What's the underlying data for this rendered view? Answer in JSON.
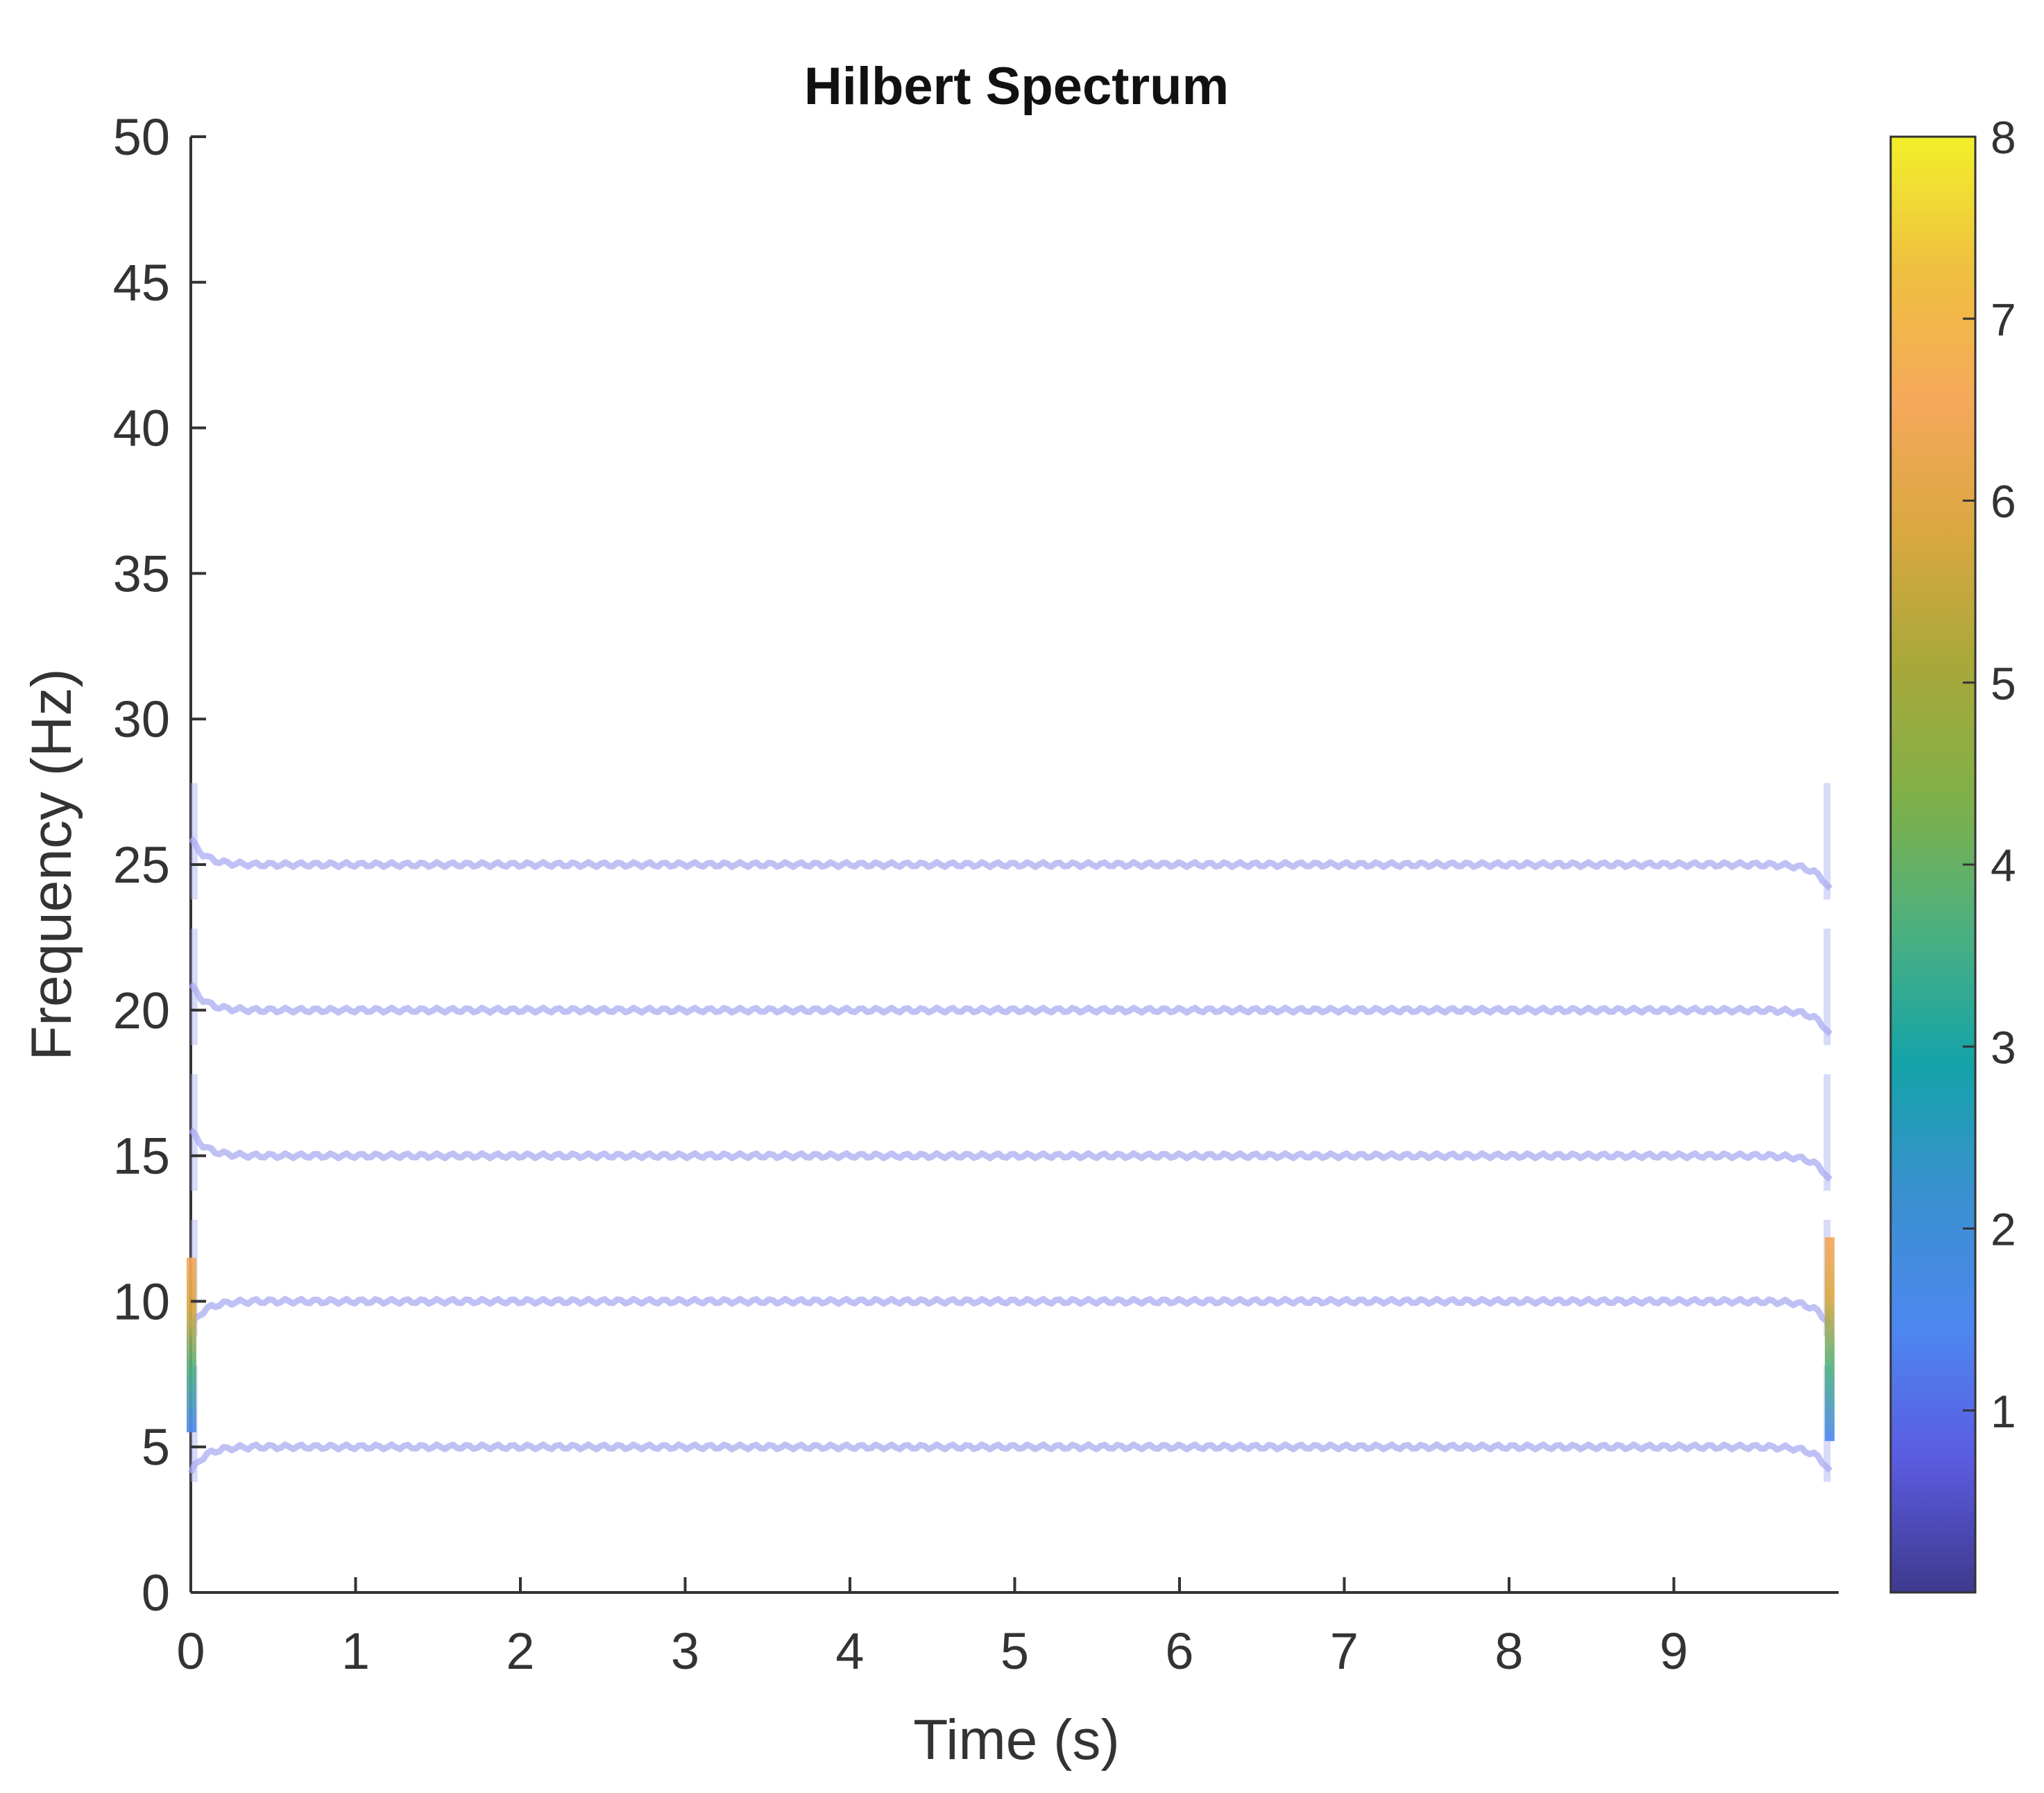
{
  "chart_data": {
    "type": "heatmap",
    "title": "Hilbert Spectrum",
    "xlabel": "Time (s)",
    "ylabel": "Frequency (Hz)",
    "xlim": [
      0,
      10
    ],
    "ylim": [
      0,
      50
    ],
    "x_ticks": [
      0,
      1,
      2,
      3,
      4,
      5,
      6,
      7,
      8,
      9
    ],
    "y_ticks": [
      0,
      5,
      10,
      15,
      20,
      25,
      30,
      35,
      40,
      45,
      50
    ],
    "colorbar": {
      "range": [
        0,
        8
      ],
      "ticks": [
        1,
        2,
        3,
        4,
        5,
        6,
        7,
        8
      ],
      "colormap": "parula",
      "colors": [
        "#3e3a8d",
        "#5b5be0",
        "#4d87f0",
        "#3a90d0",
        "#14a3a8",
        "#4cb080",
        "#7fb048",
        "#a8a83a",
        "#d9a840",
        "#f6a85a",
        "#efc040",
        "#f2f02a"
      ]
    },
    "grid": false,
    "series": [
      {
        "frequency": 5,
        "amplitude": 1,
        "end_amplitude": 4
      },
      {
        "frequency": 10,
        "amplitude": 1,
        "end_amplitude": 7
      },
      {
        "frequency": 15,
        "amplitude": 1,
        "end_amplitude": 1.5
      },
      {
        "frequency": 20,
        "amplitude": 1,
        "end_amplitude": 1.2
      },
      {
        "frequency": 25,
        "amplitude": 1,
        "end_amplitude": 1.2
      }
    ],
    "line_color": "#a9acf2"
  }
}
